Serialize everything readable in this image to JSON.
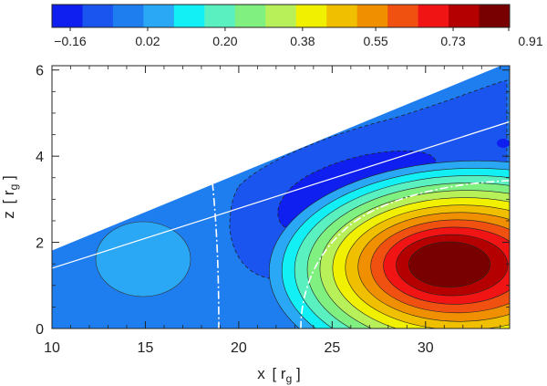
{
  "chart_data": {
    "type": "heatmap",
    "title": "",
    "xlabel": "x [r_g]",
    "ylabel": "z [r_g]",
    "xlabel_main": "x",
    "xlabel_sub": "g",
    "ylabel_main": "z",
    "ylabel_sub": "g",
    "xlim": [
      10,
      34.5
    ],
    "ylim": [
      0,
      6.1
    ],
    "x_ticks": [
      10,
      15,
      20,
      25,
      30
    ],
    "y_ticks": [
      0,
      2,
      4,
      6
    ],
    "colorbar": {
      "levels": 14,
      "colors": [
        "#0f1ff0",
        "#1a55f0",
        "#1e7ef0",
        "#2ba8f5",
        "#12f0f5",
        "#5af0c0",
        "#80f080",
        "#b8f05a",
        "#f0f000",
        "#f0c000",
        "#f09000",
        "#f05010",
        "#f01414",
        "#b40000",
        "#780000"
      ],
      "tick_labels": [
        "−0.16",
        "0.02",
        "0.20",
        "0.38",
        "0.55",
        "0.73",
        "0.91"
      ],
      "tick_values": [
        -0.16,
        0.02,
        0.2,
        0.38,
        0.55,
        0.73,
        0.91
      ]
    },
    "domain_top_line": {
      "x": [
        10,
        34.5
      ],
      "z": [
        1.75,
        6.1
      ]
    },
    "guide_line": {
      "x": [
        10,
        34.5
      ],
      "z": [
        1.4,
        4.8
      ]
    },
    "features": [
      {
        "name": "positive-lobe",
        "peak": 0.91,
        "center": [
          31,
          1.5
        ]
      },
      {
        "name": "negative-lobe",
        "min": -0.16,
        "center": [
          26,
          3.0
        ]
      },
      {
        "name": "weak-positive-lobe",
        "center": [
          15,
          1.8
        ]
      }
    ]
  }
}
